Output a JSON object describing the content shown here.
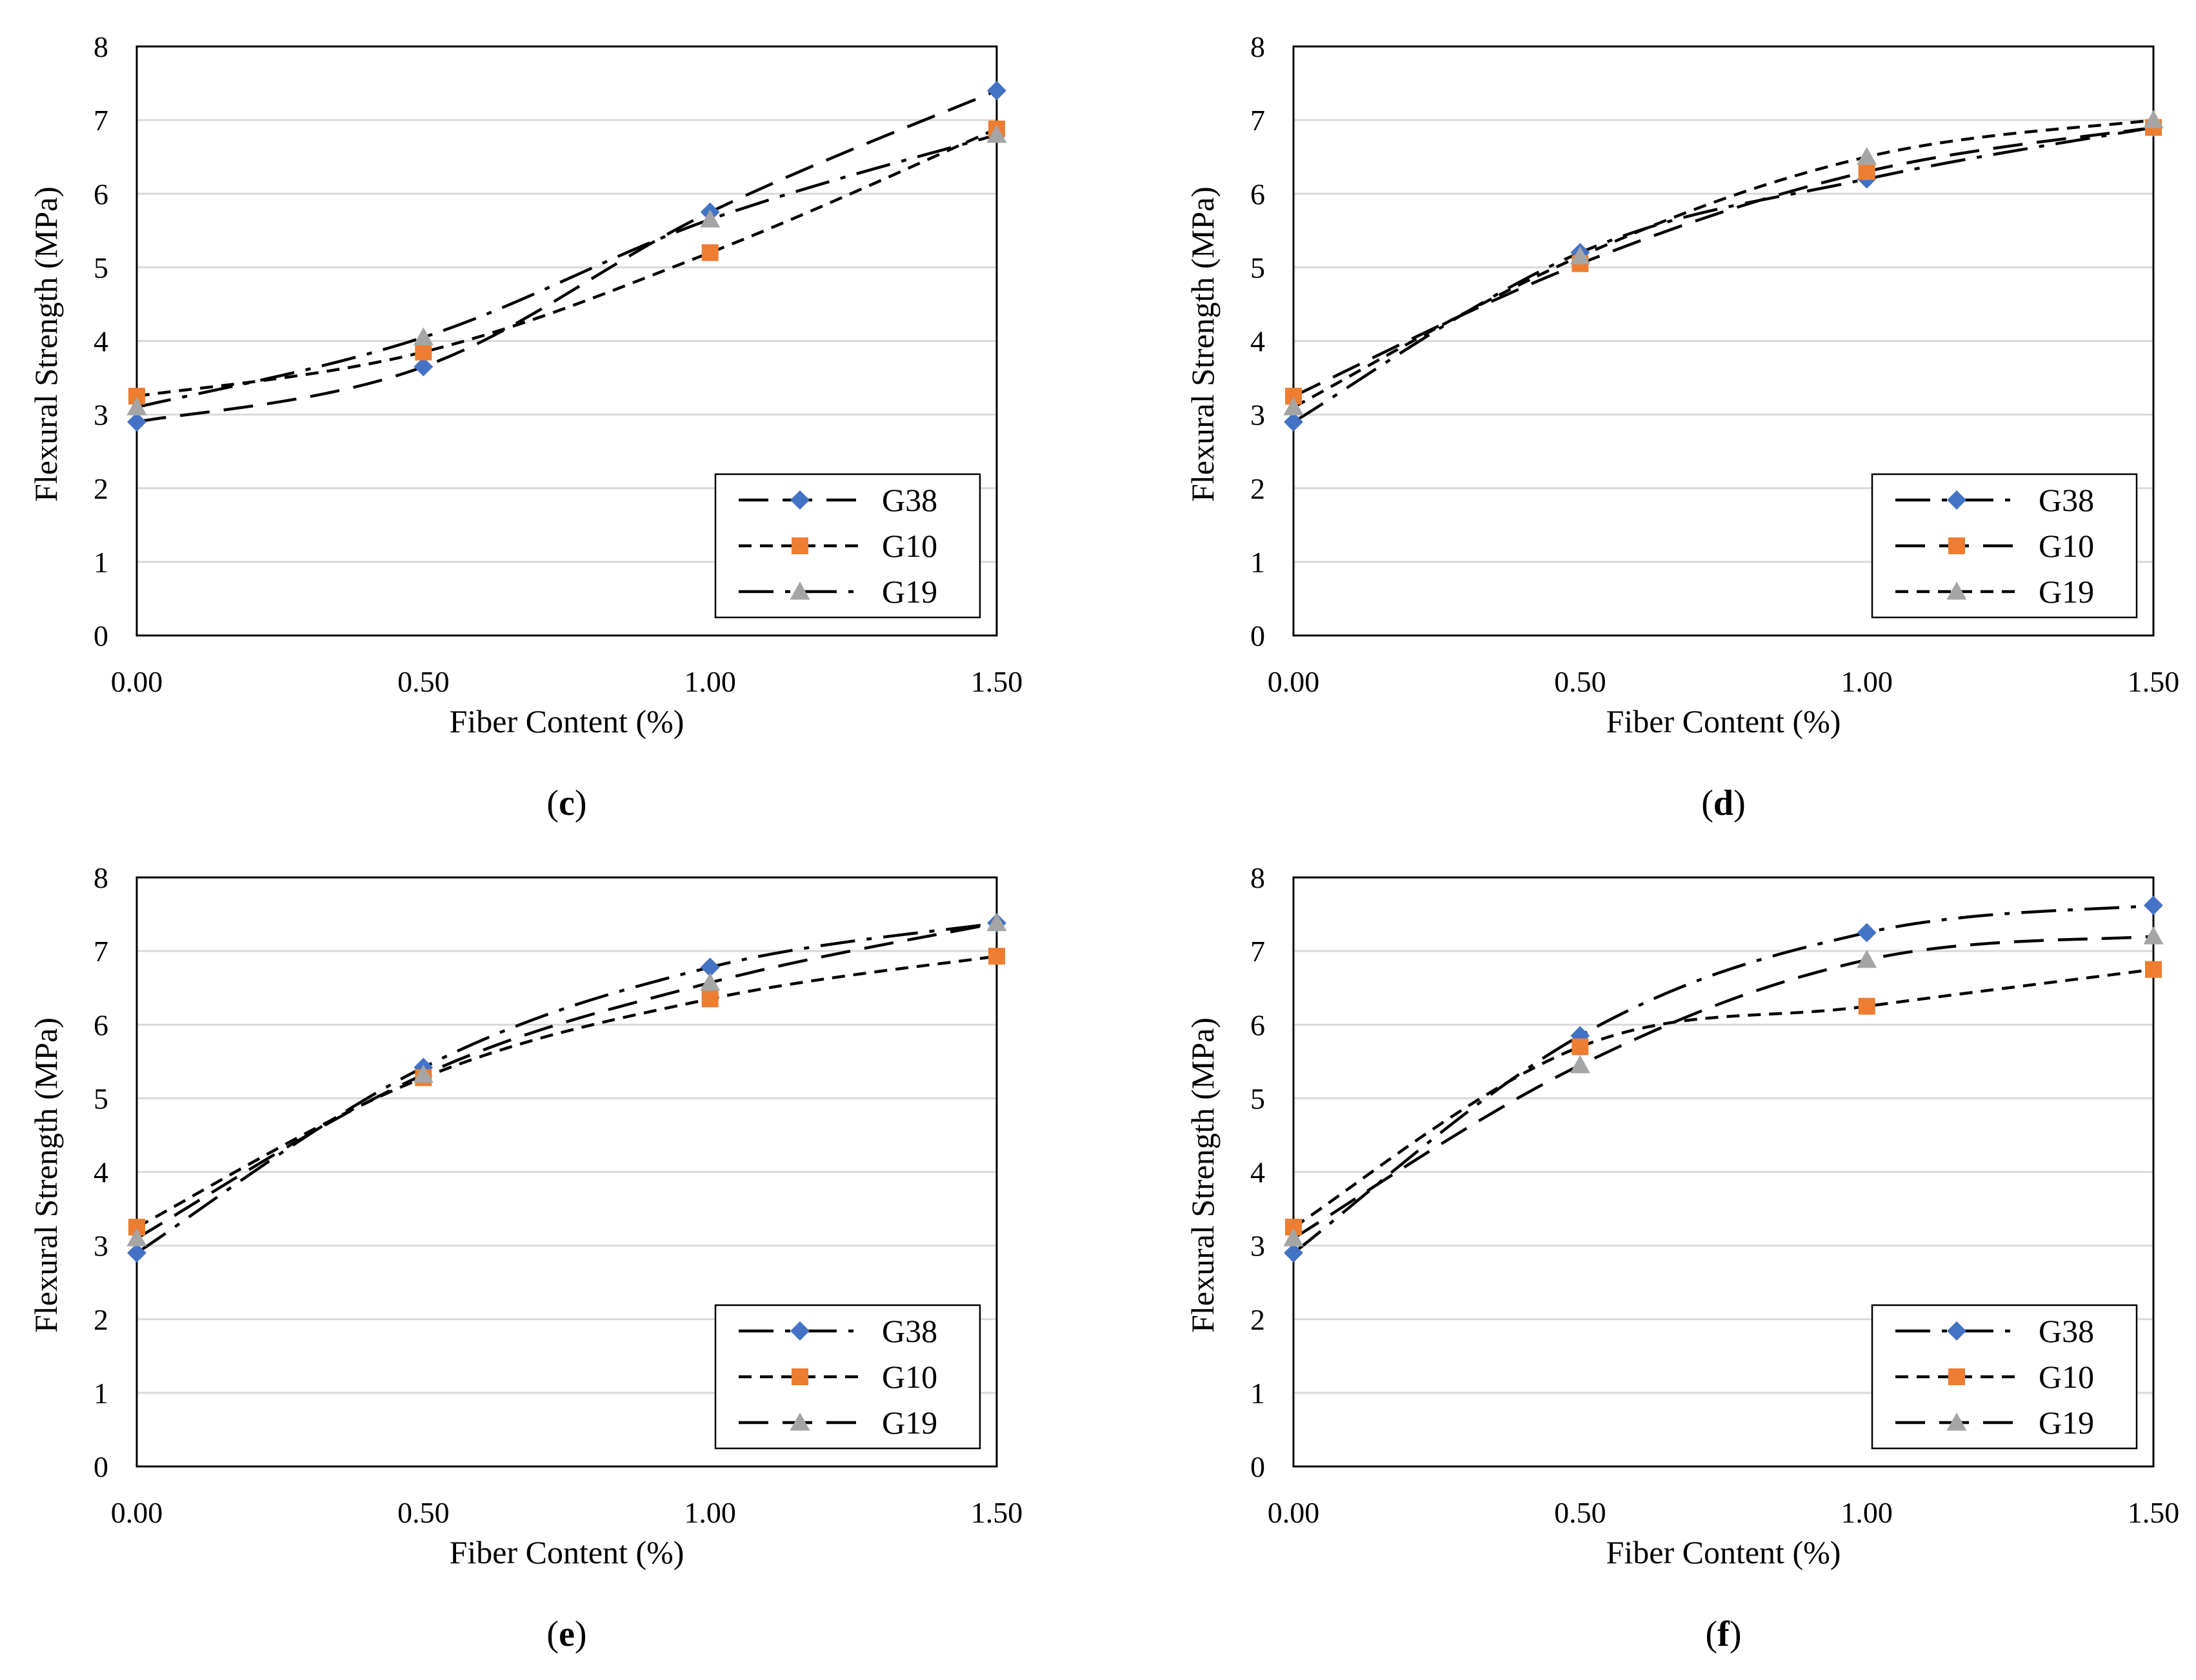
{
  "figure": {
    "colors": {
      "G38": "#4472C4",
      "G10": "#ED7D31",
      "G19": "#A5A5A5",
      "line": "#000000",
      "grid": "#D9D9D9",
      "frame": "#000000"
    },
    "markers": {
      "G38": "diamond",
      "G10": "square",
      "G19": "triangle"
    }
  },
  "chart_data": [
    {
      "type": "line",
      "panel": "c",
      "xlabel": "Fiber Content (%)",
      "ylabel": "Flexural Strength (MPa)",
      "x": [
        0.0,
        0.5,
        1.0,
        1.5
      ],
      "x_tick_labels": [
        "0.00",
        "0.50",
        "1.00",
        "1.50"
      ],
      "xlim": [
        0,
        1.5
      ],
      "ylim": [
        0,
        8
      ],
      "y_ticks": [
        0,
        1,
        2,
        3,
        4,
        5,
        6,
        7,
        8
      ],
      "legend_position": "bottom-right",
      "series": [
        {
          "name": "G38",
          "values": [
            2.9,
            3.65,
            5.75,
            7.4
          ],
          "dash": "long-dash"
        },
        {
          "name": "G10",
          "values": [
            3.25,
            3.85,
            5.2,
            6.88
          ],
          "dash": "short-dash"
        },
        {
          "name": "G19",
          "values": [
            3.1,
            4.05,
            5.65,
            6.8
          ],
          "dash": "dash-dot"
        }
      ]
    },
    {
      "type": "line",
      "panel": "d",
      "xlabel": "Fiber Content (%)",
      "ylabel": "Flexural Strength (MPa)",
      "x": [
        0.0,
        0.5,
        1.0,
        1.5
      ],
      "x_tick_labels": [
        "0.00",
        "0.50",
        "1.00",
        "1.50"
      ],
      "xlim": [
        0,
        1.5
      ],
      "ylim": [
        0,
        8
      ],
      "y_ticks": [
        0,
        1,
        2,
        3,
        4,
        5,
        6,
        7,
        8
      ],
      "legend_position": "bottom-right",
      "series": [
        {
          "name": "G38",
          "values": [
            2.9,
            5.2,
            6.2,
            6.9
          ],
          "dash": "dash-dot"
        },
        {
          "name": "G10",
          "values": [
            3.25,
            5.05,
            6.3,
            6.9
          ],
          "dash": "long-dash"
        },
        {
          "name": "G19",
          "values": [
            3.1,
            5.15,
            6.5,
            7.0
          ],
          "dash": "short-dash"
        }
      ]
    },
    {
      "type": "line",
      "panel": "e",
      "xlabel": "Fiber Content (%)",
      "ylabel": "Flexural Strength (MPa)",
      "x": [
        0.0,
        0.5,
        1.0,
        1.5
      ],
      "x_tick_labels": [
        "0.00",
        "0.50",
        "1.00",
        "1.50"
      ],
      "xlim": [
        0,
        1.5
      ],
      "ylim": [
        0,
        8
      ],
      "y_ticks": [
        0,
        1,
        2,
        3,
        4,
        5,
        6,
        7,
        8
      ],
      "legend_position": "bottom-right",
      "series": [
        {
          "name": "G38",
          "values": [
            2.9,
            5.42,
            6.78,
            7.38
          ],
          "dash": "dash-dot"
        },
        {
          "name": "G10",
          "values": [
            3.25,
            5.28,
            6.35,
            6.93
          ],
          "dash": "short-dash"
        },
        {
          "name": "G19",
          "values": [
            3.1,
            5.32,
            6.57,
            7.38
          ],
          "dash": "long-dash"
        }
      ]
    },
    {
      "type": "line",
      "panel": "f",
      "xlabel": "Fiber Content (%)",
      "ylabel": "Flexural Strength (MPa)",
      "x": [
        0.0,
        0.5,
        1.0,
        1.5
      ],
      "x_tick_labels": [
        "0.00",
        "0.50",
        "1.00",
        "1.50"
      ],
      "xlim": [
        0,
        1.5
      ],
      "ylim": [
        0,
        8
      ],
      "y_ticks": [
        0,
        1,
        2,
        3,
        4,
        5,
        6,
        7,
        8
      ],
      "legend_position": "bottom-right",
      "series": [
        {
          "name": "G38",
          "values": [
            2.9,
            5.85,
            7.25,
            7.62
          ],
          "dash": "dash-dot"
        },
        {
          "name": "G10",
          "values": [
            3.25,
            5.7,
            6.25,
            6.75
          ],
          "dash": "short-dash"
        },
        {
          "name": "G19",
          "values": [
            3.1,
            5.45,
            6.88,
            7.2
          ],
          "dash": "long-dash"
        }
      ]
    }
  ]
}
